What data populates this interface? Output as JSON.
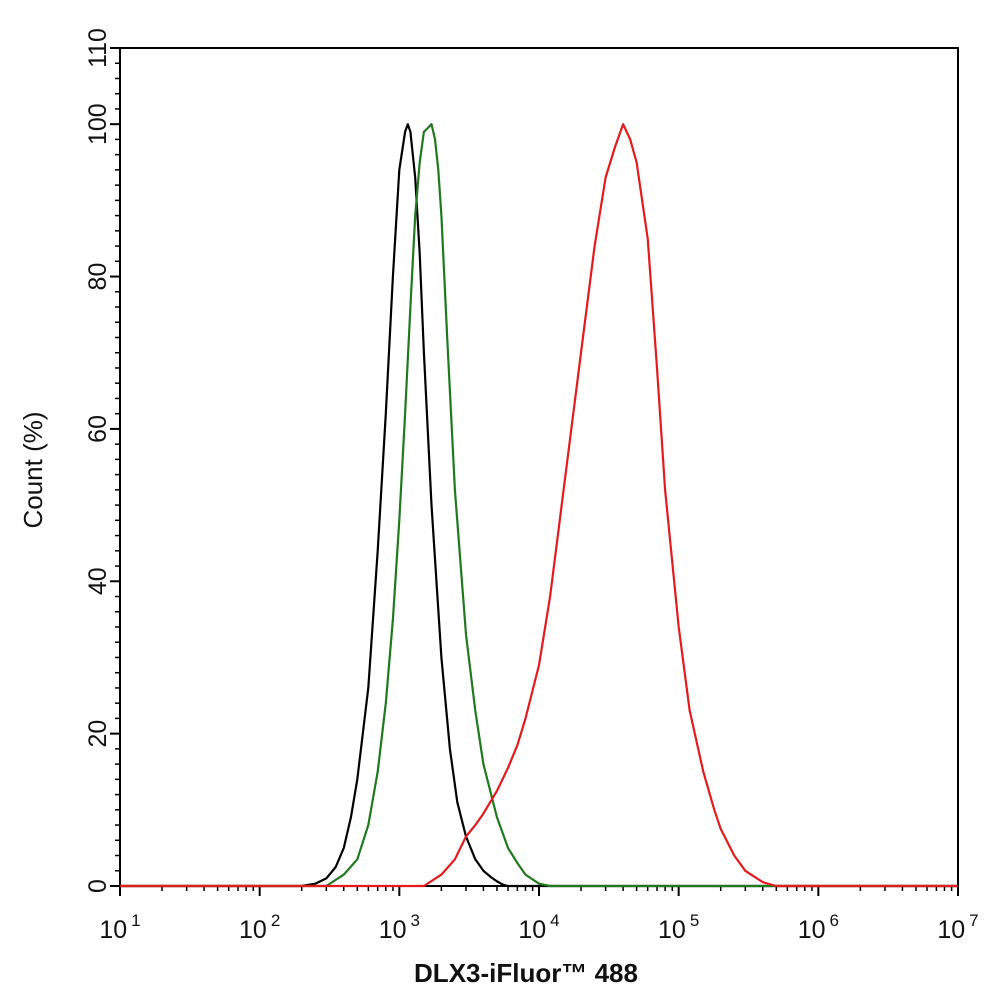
{
  "chart_data": {
    "type": "line",
    "title": "",
    "xlabel": "DLX3-iFluor™ 488",
    "ylabel": "Count  (%)",
    "x_scale": "log10",
    "xlim": [
      10,
      10000000
    ],
    "ylim": [
      0,
      110
    ],
    "x_ticks": [
      {
        "base": "10",
        "exp": "1"
      },
      {
        "base": "10",
        "exp": "2"
      },
      {
        "base": "10",
        "exp": "3"
      },
      {
        "base": "10",
        "exp": "4"
      },
      {
        "base": "10",
        "exp": "5"
      },
      {
        "base": "10",
        "exp": "6"
      },
      {
        "base": "10",
        "exp": "7"
      }
    ],
    "y_ticks": [
      "0",
      "20",
      "40",
      "60",
      "80",
      "100",
      "110"
    ],
    "grid": false,
    "legend": "none",
    "series": [
      {
        "color": "#000000",
        "x": [
          200,
          250,
          300,
          350,
          400,
          450,
          500,
          600,
          700,
          800,
          900,
          1000,
          1100,
          1150,
          1200,
          1300,
          1400,
          1500,
          1700,
          2000,
          2300,
          2600,
          3000,
          3500,
          4000,
          4500,
          5000,
          5500,
          6000
        ],
        "y": [
          0,
          0.3,
          1,
          2.5,
          5,
          9,
          14,
          26,
          44,
          62,
          80,
          94,
          99,
          100,
          99,
          93,
          83,
          70,
          50,
          30,
          18,
          11,
          6.5,
          3.5,
          2,
          1.2,
          0.6,
          0.2,
          0
        ]
      },
      {
        "color": "#1f7a1f",
        "x": [
          300,
          400,
          500,
          600,
          700,
          800,
          900,
          1000,
          1100,
          1200,
          1300,
          1400,
          1500,
          1600,
          1700,
          1800,
          1900,
          2000,
          2200,
          2500,
          3000,
          3500,
          4000,
          5000,
          6000,
          7000,
          8000,
          10000,
          12000
        ],
        "y": [
          0,
          1.5,
          3.5,
          8,
          15,
          24,
          35,
          48,
          62,
          76,
          88,
          95,
          99,
          99.5,
          100,
          98,
          94,
          88,
          72,
          52,
          33,
          23,
          16,
          9,
          5,
          3,
          1.5,
          0.3,
          0
        ]
      },
      {
        "color": "#e41a1c",
        "x": [
          1500,
          2000,
          2500,
          3000,
          3500,
          4000,
          5000,
          6000,
          7000,
          8000,
          10000,
          12000,
          15000,
          20000,
          25000,
          30000,
          35000,
          40000,
          45000,
          50000,
          60000,
          70000,
          80000,
          100000,
          120000,
          150000,
          180000,
          200000,
          250000,
          300000,
          400000,
          500000
        ],
        "y": [
          0,
          1.5,
          3.5,
          6.5,
          8,
          9.5,
          12.5,
          15.5,
          18.5,
          22,
          29,
          38,
          52,
          70,
          84,
          93,
          97,
          100,
          98,
          95,
          85,
          68,
          52,
          34,
          23,
          15,
          10,
          7.5,
          4,
          2,
          0.5,
          0
        ]
      }
    ]
  }
}
